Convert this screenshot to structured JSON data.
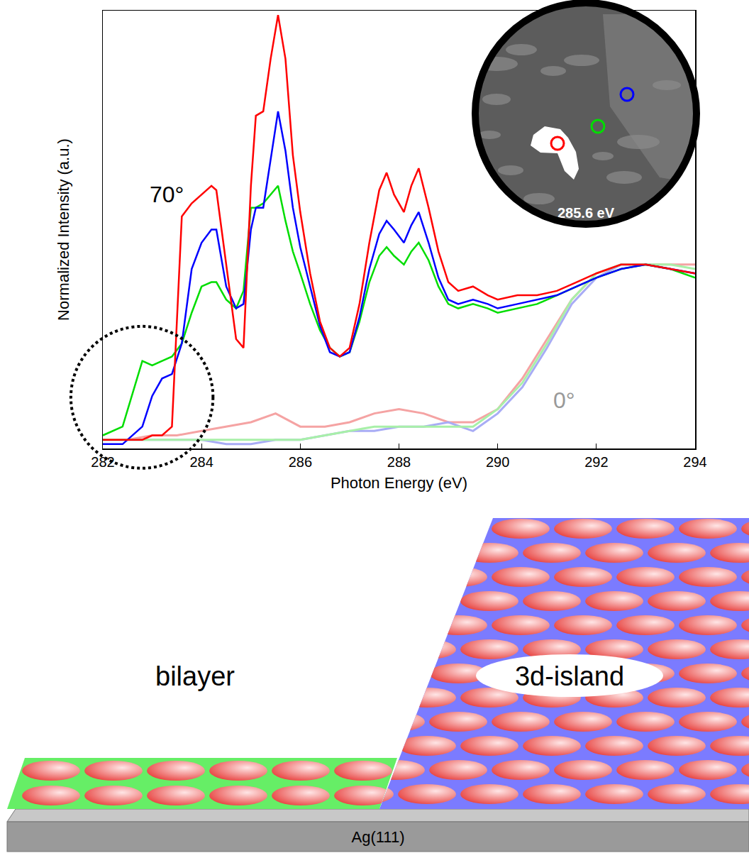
{
  "chart_data": {
    "type": "line",
    "x_label": "Photon Energy (eV)",
    "y_label": "Normalized Intensity (a.u.)",
    "xlim": [
      282,
      294
    ],
    "xticks": [
      282,
      284,
      286,
      288,
      290,
      292,
      294
    ],
    "ylim": [
      0,
      1
    ],
    "tick_labels": "x",
    "grid": false,
    "series": [
      {
        "color": "#f5a3a3",
        "x": [
          282,
          282.5,
          283,
          283.5,
          284,
          284.5,
          285,
          285.5,
          286,
          286.5,
          287,
          287.5,
          288,
          288.5,
          289,
          289.5,
          290,
          290.5,
          291,
          291.5,
          292,
          292.5,
          293,
          293.5,
          294
        ],
        "values": [
          0.02,
          0.02,
          0.03,
          0.03,
          0.04,
          0.05,
          0.06,
          0.08,
          0.05,
          0.05,
          0.06,
          0.08,
          0.09,
          0.08,
          0.06,
          0.06,
          0.09,
          0.16,
          0.25,
          0.34,
          0.4,
          0.42,
          0.42,
          0.42,
          0.42
        ]
      },
      {
        "color": "#a8acf5",
        "x": [
          282,
          282.5,
          283,
          283.5,
          284,
          284.5,
          285,
          285.5,
          286,
          286.5,
          287,
          287.5,
          288,
          288.5,
          289,
          289.5,
          290,
          290.5,
          291,
          291.5,
          292,
          292.5,
          293,
          293.5,
          294
        ],
        "values": [
          0.02,
          0.02,
          0.02,
          0.02,
          0.02,
          0.01,
          0.01,
          0.02,
          0.02,
          0.03,
          0.04,
          0.04,
          0.05,
          0.05,
          0.06,
          0.04,
          0.08,
          0.14,
          0.23,
          0.33,
          0.39,
          0.42,
          0.42,
          0.41,
          0.4
        ]
      },
      {
        "color": "#a8f0a8",
        "x": [
          282,
          282.5,
          283,
          283.5,
          284,
          284.5,
          285,
          285.5,
          286,
          286.5,
          287,
          287.5,
          288,
          288.5,
          289,
          289.5,
          290,
          290.5,
          291,
          291.5,
          292,
          292.5,
          293,
          293.5,
          294
        ],
        "values": [
          0.02,
          0.02,
          0.02,
          0.02,
          0.02,
          0.02,
          0.02,
          0.02,
          0.02,
          0.03,
          0.04,
          0.05,
          0.05,
          0.05,
          0.05,
          0.05,
          0.09,
          0.15,
          0.24,
          0.34,
          0.4,
          0.42,
          0.42,
          0.42,
          0.41
        ]
      },
      {
        "color": "#00dd00",
        "x": [
          282,
          282.4,
          282.8,
          283,
          283.2,
          283.4,
          283.6,
          283.8,
          284,
          284.2,
          284.3,
          284.5,
          284.7,
          284.85,
          285,
          285.1,
          285.25,
          285.4,
          285.55,
          285.7,
          285.85,
          286,
          286.2,
          286.4,
          286.6,
          286.8,
          287,
          287.2,
          287.4,
          287.6,
          287.75,
          287.9,
          288.1,
          288.25,
          288.4,
          288.6,
          288.8,
          289,
          289.2,
          289.5,
          289.8,
          290,
          290.4,
          290.8,
          291.2,
          291.6,
          292,
          292.5,
          293,
          293.5,
          294
        ],
        "values": [
          0.03,
          0.05,
          0.2,
          0.19,
          0.2,
          0.21,
          0.24,
          0.31,
          0.37,
          0.38,
          0.38,
          0.34,
          0.32,
          0.36,
          0.55,
          0.55,
          0.56,
          0.58,
          0.6,
          0.52,
          0.45,
          0.4,
          0.33,
          0.27,
          0.23,
          0.21,
          0.22,
          0.29,
          0.38,
          0.44,
          0.46,
          0.44,
          0.42,
          0.45,
          0.47,
          0.43,
          0.37,
          0.33,
          0.32,
          0.33,
          0.32,
          0.31,
          0.32,
          0.33,
          0.35,
          0.37,
          0.39,
          0.41,
          0.42,
          0.41,
          0.39
        ]
      },
      {
        "color": "#0000ff",
        "x": [
          282,
          282.4,
          282.8,
          283,
          283.2,
          283.4,
          283.6,
          283.8,
          284,
          284.2,
          284.3,
          284.5,
          284.7,
          284.85,
          285,
          285.1,
          285.25,
          285.4,
          285.55,
          285.7,
          285.85,
          286,
          286.2,
          286.4,
          286.6,
          286.8,
          287,
          287.2,
          287.4,
          287.6,
          287.75,
          287.9,
          288.1,
          288.25,
          288.4,
          288.6,
          288.8,
          289,
          289.2,
          289.5,
          289.8,
          290,
          290.4,
          290.8,
          291.2,
          291.6,
          292,
          292.5,
          293,
          293.5,
          294
        ],
        "values": [
          0.01,
          0.01,
          0.05,
          0.12,
          0.16,
          0.17,
          0.24,
          0.41,
          0.47,
          0.5,
          0.5,
          0.37,
          0.32,
          0.33,
          0.5,
          0.55,
          0.55,
          0.66,
          0.77,
          0.68,
          0.55,
          0.46,
          0.37,
          0.28,
          0.22,
          0.21,
          0.22,
          0.3,
          0.41,
          0.49,
          0.52,
          0.5,
          0.47,
          0.51,
          0.54,
          0.47,
          0.39,
          0.34,
          0.33,
          0.34,
          0.33,
          0.32,
          0.33,
          0.34,
          0.35,
          0.37,
          0.39,
          0.41,
          0.42,
          0.41,
          0.4
        ]
      },
      {
        "color": "#ff0000",
        "x": [
          282,
          282.4,
          282.8,
          283,
          283.2,
          283.4,
          283.6,
          283.8,
          284,
          284.2,
          284.3,
          284.5,
          284.7,
          284.85,
          285,
          285.1,
          285.25,
          285.4,
          285.55,
          285.7,
          285.85,
          286,
          286.2,
          286.4,
          286.6,
          286.8,
          287,
          287.2,
          287.4,
          287.6,
          287.75,
          287.9,
          288.1,
          288.25,
          288.4,
          288.6,
          288.8,
          289,
          289.2,
          289.5,
          289.8,
          290,
          290.4,
          290.8,
          291.2,
          291.6,
          292,
          292.5,
          293,
          293.5,
          294
        ],
        "values": [
          0.02,
          0.02,
          0.02,
          0.03,
          0.03,
          0.05,
          0.53,
          0.56,
          0.58,
          0.6,
          0.59,
          0.42,
          0.25,
          0.23,
          0.6,
          0.76,
          0.77,
          0.89,
          0.99,
          0.89,
          0.67,
          0.54,
          0.4,
          0.29,
          0.23,
          0.21,
          0.23,
          0.33,
          0.47,
          0.59,
          0.63,
          0.58,
          0.54,
          0.6,
          0.64,
          0.55,
          0.45,
          0.38,
          0.36,
          0.37,
          0.35,
          0.34,
          0.35,
          0.35,
          0.36,
          0.38,
          0.4,
          0.42,
          0.42,
          0.41,
          0.4
        ]
      }
    ],
    "annotations": [
      {
        "text": "70°",
        "x": 283.3,
        "y": 0.58,
        "color": "#000000"
      },
      {
        "text": "0°",
        "x": 291.35,
        "y": 0.11,
        "color": "#999999"
      }
    ],
    "inset": {
      "label": "285.6 eV",
      "markers": [
        "#ff0000",
        "#00dd00",
        "#0000ff"
      ]
    }
  },
  "diagram": {
    "substrate": "Ag(111)",
    "bilayer": {
      "label": "bilayer"
    },
    "island": {
      "label": "3d-island"
    }
  }
}
